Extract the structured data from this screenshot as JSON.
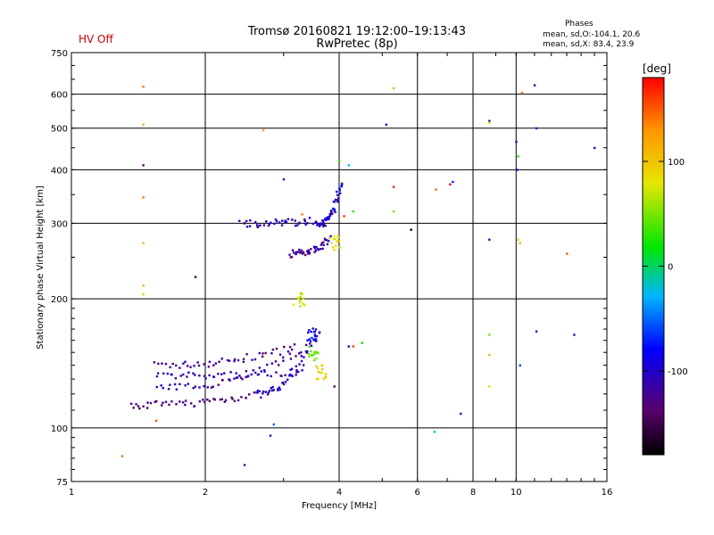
{
  "header": {
    "title_line1": "Tromsø 20160821 19:12:00–19:13:43",
    "title_line2": "RwPretec (8p)",
    "hv_status": "HV Off",
    "stats_title": "Phases",
    "stats_line1": "mean, sd,O:-104.1, 20.6",
    "stats_line2": "mean, sd,X: 83.4, 23.9"
  },
  "colorbar": {
    "unit_label": "[deg]",
    "ticks": [
      "100",
      "0",
      "-100"
    ],
    "tick_values": [
      100,
      0,
      -100
    ],
    "range": [
      -180,
      180
    ]
  },
  "chart_data": {
    "type": "scatter",
    "title": "Tromsø 20160821 19:12:00–19:13:43",
    "subtitle": "RwPretec (8p)",
    "xlabel": "Frequency [MHz]",
    "ylabel": "Stationary phase Virtual Height [km]",
    "x_scale": "log",
    "y_scale": "log",
    "xlim": [
      1,
      16
    ],
    "ylim": [
      75,
      750
    ],
    "x_ticks": [
      1,
      2,
      4,
      6,
      8,
      10,
      16
    ],
    "x_tick_labels": [
      "1",
      "2",
      "4",
      "6",
      "8",
      "10",
      "16"
    ],
    "y_ticks": [
      75,
      100,
      200,
      300,
      400,
      500,
      600,
      750
    ],
    "y_tick_labels": [
      "75",
      "100",
      "200",
      "300",
      "400",
      "500",
      "600",
      "750"
    ],
    "color_variable": "phase [deg]",
    "traces": [
      {
        "f0": 1.55,
        "f1": 3.2,
        "h0": 140,
        "h1": 155,
        "phase": -125
      },
      {
        "f0": 1.55,
        "f1": 3.3,
        "h0": 132,
        "h1": 136,
        "phase": -110
      },
      {
        "f0": 1.55,
        "f1": 3.5,
        "h0": 124,
        "h1": 158,
        "phase": -115
      },
      {
        "f0": 1.35,
        "f1": 2.6,
        "h0": 113,
        "h1": 120,
        "phase": -130
      },
      {
        "f0": 2.6,
        "f1": 3.6,
        "h0": 120,
        "h1": 170,
        "phase": -105
      },
      {
        "f0": 2.4,
        "f1": 3.7,
        "h0": 300,
        "h1": 305,
        "phase": -110
      },
      {
        "f0": 3.1,
        "f1": 3.8,
        "h0": 255,
        "h1": 275,
        "phase": -115
      },
      {
        "f0": 3.6,
        "f1": 4.05,
        "h0": 300,
        "h1": 370,
        "phase": -100
      }
    ],
    "clusters": [
      {
        "f": 3.65,
        "h": 135,
        "phase": 95
      },
      {
        "f": 3.5,
        "h": 150,
        "phase": 45
      },
      {
        "f": 3.9,
        "h": 270,
        "phase": 85
      },
      {
        "f": 3.25,
        "h": 200,
        "phase": 75
      },
      {
        "f": 3.45,
        "h": 165,
        "phase": -80
      }
    ],
    "isolated": [
      {
        "f": 1.45,
        "h": 625,
        "phase": 140
      },
      {
        "f": 1.45,
        "h": 510,
        "phase": 110
      },
      {
        "f": 1.45,
        "h": 410,
        "phase": -140
      },
      {
        "f": 1.45,
        "h": 345,
        "phase": 140
      },
      {
        "f": 1.45,
        "h": 270,
        "phase": 105
      },
      {
        "f": 1.45,
        "h": 215,
        "phase": 110
      },
      {
        "f": 1.45,
        "h": 205,
        "phase": 70
      },
      {
        "f": 1.55,
        "h": 104,
        "phase": 150
      },
      {
        "f": 1.3,
        "h": 86,
        "phase": 140
      },
      {
        "f": 1.9,
        "h": 225,
        "phase": -150
      },
      {
        "f": 2.45,
        "h": 82,
        "phase": -120
      },
      {
        "f": 2.8,
        "h": 96,
        "phase": -110
      },
      {
        "f": 2.85,
        "h": 102,
        "phase": -50
      },
      {
        "f": 2.7,
        "h": 495,
        "phase": 120
      },
      {
        "f": 3.0,
        "h": 380,
        "phase": -115
      },
      {
        "f": 3.3,
        "h": 315,
        "phase": 140
      },
      {
        "f": 3.9,
        "h": 125,
        "phase": -140
      },
      {
        "f": 4.2,
        "h": 155,
        "phase": -110
      },
      {
        "f": 4.3,
        "h": 155,
        "phase": 160
      },
      {
        "f": 4.5,
        "h": 158,
        "phase": 20
      },
      {
        "f": 4.2,
        "h": 410,
        "phase": -30
      },
      {
        "f": 4.0,
        "h": 420,
        "phase": 30
      },
      {
        "f": 4.3,
        "h": 320,
        "phase": 30
      },
      {
        "f": 4.1,
        "h": 312,
        "phase": 160
      },
      {
        "f": 5.1,
        "h": 510,
        "phase": -110
      },
      {
        "f": 5.3,
        "h": 620,
        "phase": 110
      },
      {
        "f": 5.3,
        "h": 365,
        "phase": 170
      },
      {
        "f": 5.3,
        "h": 320,
        "phase": 50
      },
      {
        "f": 5.8,
        "h": 290,
        "phase": -200
      },
      {
        "f": 6.55,
        "h": 98,
        "phase": -20
      },
      {
        "f": 6.6,
        "h": 360,
        "phase": 145
      },
      {
        "f": 7.1,
        "h": 370,
        "phase": 180
      },
      {
        "f": 7.2,
        "h": 375,
        "phase": -70
      },
      {
        "f": 7.5,
        "h": 108,
        "phase": -100
      },
      {
        "f": 8.7,
        "h": 520,
        "phase": -100
      },
      {
        "f": 8.7,
        "h": 515,
        "phase": 80
      },
      {
        "f": 8.7,
        "h": 275,
        "phase": -110
      },
      {
        "f": 8.7,
        "h": 165,
        "phase": 50
      },
      {
        "f": 8.7,
        "h": 148,
        "phase": 110
      },
      {
        "f": 8.7,
        "h": 125,
        "phase": 85
      },
      {
        "f": 10.0,
        "h": 465,
        "phase": -100
      },
      {
        "f": 10.1,
        "h": 430,
        "phase": 30
      },
      {
        "f": 10.05,
        "h": 400,
        "phase": -90
      },
      {
        "f": 10.1,
        "h": 275,
        "phase": 90
      },
      {
        "f": 10.2,
        "h": 270,
        "phase": 100
      },
      {
        "f": 10.2,
        "h": 140,
        "phase": -60
      },
      {
        "f": 10.3,
        "h": 605,
        "phase": 140
      },
      {
        "f": 11.0,
        "h": 630,
        "phase": -110
      },
      {
        "f": 11.1,
        "h": 500,
        "phase": -110
      },
      {
        "f": 11.1,
        "h": 168,
        "phase": -100
      },
      {
        "f": 13.0,
        "h": 255,
        "phase": 150
      },
      {
        "f": 13.5,
        "h": 165,
        "phase": -120
      },
      {
        "f": 15.0,
        "h": 450,
        "phase": -100
      }
    ]
  }
}
